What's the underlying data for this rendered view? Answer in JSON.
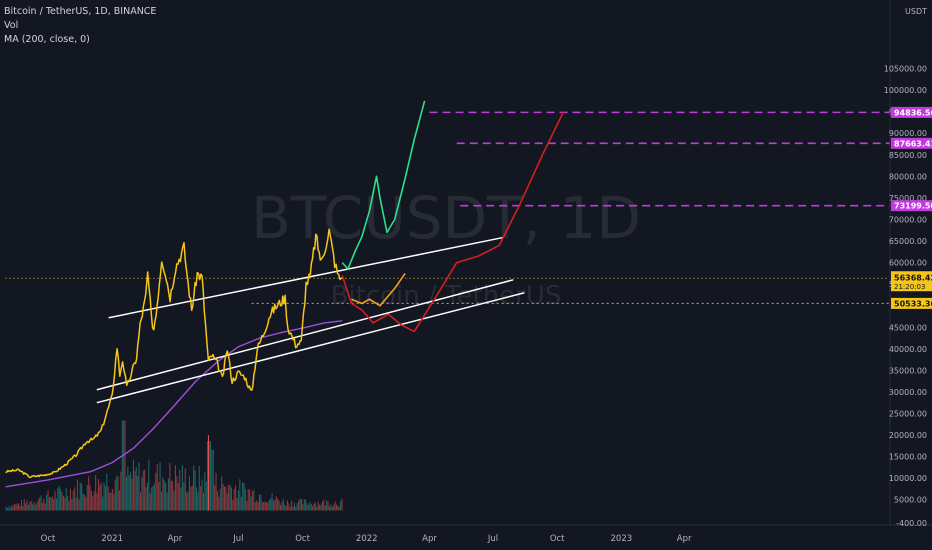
{
  "legend": {
    "symbol_line": "Bitcoin / TetherUS, 1D, BINANCE",
    "volume_label": "Vol",
    "ma_label": "MA (200, close, 0)"
  },
  "watermark": {
    "symbol": "BTCUSDT, 1D",
    "name": "Bitcoin / TetherUS"
  },
  "currency_label": "USDT",
  "colors": {
    "background": "#131722",
    "price": "#f5c518",
    "ma": "#9c4ee0",
    "channel": "#ffffff",
    "projection_green": "#2ee08a",
    "projection_red": "#d61e1e",
    "projection_orange": "#f5a01a",
    "target_line": "#c33be0",
    "price_line": "#f5c518",
    "volume_up": "#26a69a",
    "volume_down": "#ef5350",
    "axis_text": "#b2b5be"
  },
  "chart_data": {
    "type": "line",
    "symbol": "BTCUSDT",
    "timeframe": "1D",
    "exchange": "BINANCE",
    "y_axis": {
      "min": -400,
      "max": 110000,
      "ticks": [
        {
          "label": "105000.00",
          "value": 105000
        },
        {
          "label": "100000.00",
          "value": 100000
        },
        {
          "label": "95000.00",
          "value": 95000
        },
        {
          "label": "90000.00",
          "value": 90000
        },
        {
          "label": "85000.00",
          "value": 85000
        },
        {
          "label": "80000.00",
          "value": 80000
        },
        {
          "label": "75000.00",
          "value": 75000
        },
        {
          "label": "70000.00",
          "value": 70000
        },
        {
          "label": "65000.00",
          "value": 65000
        },
        {
          "label": "60000.00",
          "value": 60000
        },
        {
          "label": "55000.00",
          "value": 55000
        },
        {
          "label": "45000.00",
          "value": 45000
        },
        {
          "label": "40000.00",
          "value": 40000
        },
        {
          "label": "35000.00",
          "value": 35000
        },
        {
          "label": "30000.00",
          "value": 30000
        },
        {
          "label": "25000.00",
          "value": 25000
        },
        {
          "label": "20000.00",
          "value": 20000
        },
        {
          "label": "15000.00",
          "value": 15000
        },
        {
          "label": "10000.00",
          "value": 10000
        },
        {
          "label": "5000.00",
          "value": 5000
        },
        {
          "label": "-400.00",
          "value": -400
        }
      ]
    },
    "x_axis": {
      "ticks": [
        {
          "label": "Oct",
          "date": "2020-10-01"
        },
        {
          "label": "2021",
          "date": "2021-01-01"
        },
        {
          "label": "Apr",
          "date": "2021-04-01"
        },
        {
          "label": "Jul",
          "date": "2021-07-01"
        },
        {
          "label": "Oct",
          "date": "2021-10-01"
        },
        {
          "label": "2022",
          "date": "2022-01-01"
        },
        {
          "label": "Apr",
          "date": "2022-04-01"
        },
        {
          "label": "Jul",
          "date": "2022-07-01"
        },
        {
          "label": "Oct",
          "date": "2022-10-01"
        },
        {
          "label": "2023",
          "date": "2023-01-01"
        },
        {
          "label": "Apr",
          "date": "2023-04-01"
        }
      ]
    },
    "price_series": {
      "name": "Bitcoin / TetherUS",
      "points": [
        [
          "2020-08-01",
          11500
        ],
        [
          "2020-08-20",
          11900
        ],
        [
          "2020-09-05",
          10300
        ],
        [
          "2020-09-25",
          10700
        ],
        [
          "2020-10-10",
          11300
        ],
        [
          "2020-10-25",
          13000
        ],
        [
          "2020-11-10",
          15300
        ],
        [
          "2020-11-25",
          18500
        ],
        [
          "2020-12-05",
          19000
        ],
        [
          "2020-12-16",
          21000
        ],
        [
          "2020-12-27",
          26500
        ],
        [
          "2021-01-01",
          29000
        ],
        [
          "2021-01-08",
          40500
        ],
        [
          "2021-01-12",
          34000
        ],
        [
          "2021-01-16",
          37500
        ],
        [
          "2021-01-22",
          31000
        ],
        [
          "2021-01-28",
          34000
        ],
        [
          "2021-02-05",
          38000
        ],
        [
          "2021-02-10",
          45500
        ],
        [
          "2021-02-18",
          52000
        ],
        [
          "2021-02-21",
          57500
        ],
        [
          "2021-02-28",
          44000
        ],
        [
          "2021-03-05",
          48000
        ],
        [
          "2021-03-13",
          61000
        ],
        [
          "2021-03-18",
          58000
        ],
        [
          "2021-03-25",
          52000
        ],
        [
          "2021-04-02",
          59000
        ],
        [
          "2021-04-14",
          63500
        ],
        [
          "2021-04-20",
          55000
        ],
        [
          "2021-04-25",
          49000
        ],
        [
          "2021-05-03",
          57500
        ],
        [
          "2021-05-10",
          56500
        ],
        [
          "2021-05-13",
          49500
        ],
        [
          "2021-05-19",
          37000
        ],
        [
          "2021-05-24",
          38500
        ],
        [
          "2021-06-01",
          36500
        ],
        [
          "2021-06-08",
          33000
        ],
        [
          "2021-06-15",
          40000
        ],
        [
          "2021-06-22",
          32500
        ],
        [
          "2021-07-01",
          34500
        ],
        [
          "2021-07-10",
          33500
        ],
        [
          "2021-07-20",
          29800
        ],
        [
          "2021-07-28",
          40000
        ],
        [
          "2021-08-07",
          44000
        ],
        [
          "2021-08-14",
          47500
        ],
        [
          "2021-08-22",
          49500
        ],
        [
          "2021-09-06",
          51800
        ],
        [
          "2021-09-10",
          45000
        ],
        [
          "2021-09-21",
          41000
        ],
        [
          "2021-09-29",
          41500
        ],
        [
          "2021-10-06",
          55000
        ],
        [
          "2021-10-12",
          57000
        ],
        [
          "2021-10-20",
          66000
        ],
        [
          "2021-10-28",
          60000
        ],
        [
          "2021-11-08",
          67500
        ],
        [
          "2021-11-16",
          60000
        ],
        [
          "2021-11-22",
          56500
        ],
        [
          "2021-11-27",
          56368.42
        ]
      ]
    },
    "ma_series": {
      "label": "MA (200, close, 0)",
      "points": [
        [
          "2020-08-01",
          8000
        ],
        [
          "2020-10-01",
          9600
        ],
        [
          "2020-12-01",
          11500
        ],
        [
          "2021-01-01",
          13600
        ],
        [
          "2021-02-01",
          17000
        ],
        [
          "2021-03-01",
          21500
        ],
        [
          "2021-04-01",
          27000
        ],
        [
          "2021-05-01",
          32500
        ],
        [
          "2021-06-01",
          37000
        ],
        [
          "2021-07-01",
          40500
        ],
        [
          "2021-08-01",
          42500
        ],
        [
          "2021-09-01",
          43800
        ],
        [
          "2021-10-01",
          44800
        ],
        [
          "2021-11-01",
          46000
        ],
        [
          "2021-11-27",
          46500
        ]
      ]
    },
    "volume_series": {
      "label": "Vol",
      "start": "2020-08-01",
      "end": "2021-11-27",
      "note_max_value": 14500
    },
    "channel_lines": [
      {
        "start": [
          "2020-12-27",
          47200
        ],
        "end": [
          "2022-07-15",
          65800
        ]
      },
      {
        "start": [
          "2020-12-10",
          30500
        ],
        "end": [
          "2022-07-30",
          56000
        ]
      },
      {
        "start": [
          "2020-12-10",
          27500
        ],
        "end": [
          "2022-08-15",
          53000
        ]
      }
    ],
    "projections": [
      {
        "color_key": "projection_green",
        "points": [
          [
            "2021-11-27",
            60000
          ],
          [
            "2021-12-05",
            58500
          ],
          [
            "2021-12-15",
            62500
          ],
          [
            "2021-12-25",
            66000
          ],
          [
            "2022-01-05",
            72000
          ],
          [
            "2022-01-15",
            80000
          ],
          [
            "2022-01-20",
            75000
          ],
          [
            "2022-01-30",
            67000
          ],
          [
            "2022-02-10",
            70000
          ],
          [
            "2022-02-25",
            79500
          ],
          [
            "2022-03-10",
            88500
          ],
          [
            "2022-03-25",
            97500
          ]
        ]
      },
      {
        "color_key": "projection_red",
        "points": [
          [
            "2021-11-27",
            57000
          ],
          [
            "2021-12-10",
            50500
          ],
          [
            "2021-12-25",
            49000
          ],
          [
            "2022-01-10",
            46000
          ],
          [
            "2022-02-01",
            48000
          ],
          [
            "2022-02-20",
            45500
          ],
          [
            "2022-03-10",
            44000
          ],
          [
            "2022-04-10",
            52000
          ],
          [
            "2022-05-10",
            60000
          ],
          [
            "2022-06-10",
            61500
          ],
          [
            "2022-07-10",
            64000
          ],
          [
            "2022-08-10",
            74000
          ],
          [
            "2022-09-10",
            85000
          ],
          [
            "2022-10-10",
            95000
          ]
        ]
      },
      {
        "color_key": "projection_orange",
        "points": [
          [
            "2021-12-10",
            51500
          ],
          [
            "2021-12-25",
            50500
          ],
          [
            "2022-01-05",
            51500
          ],
          [
            "2022-01-20",
            50000
          ],
          [
            "2022-02-10",
            54000
          ],
          [
            "2022-02-25",
            57500
          ]
        ]
      }
    ],
    "horizontal_levels": [
      {
        "value": 94836.56,
        "label": "94836.56",
        "start": "2022-04-01",
        "style": "target"
      },
      {
        "value": 87663.41,
        "label": "87663.41",
        "start": "2022-05-10",
        "style": "target"
      },
      {
        "value": 73199.5,
        "label": "73199.50",
        "start": "2022-05-15",
        "style": "target"
      },
      {
        "value": 56368.42,
        "label": "56368.42",
        "sublabel": "21:20:03",
        "start": "2020-08-01",
        "style": "current"
      },
      {
        "value": 50533.36,
        "label": "50533.36",
        "start": "2021-07-20",
        "style": "dotted"
      }
    ]
  }
}
